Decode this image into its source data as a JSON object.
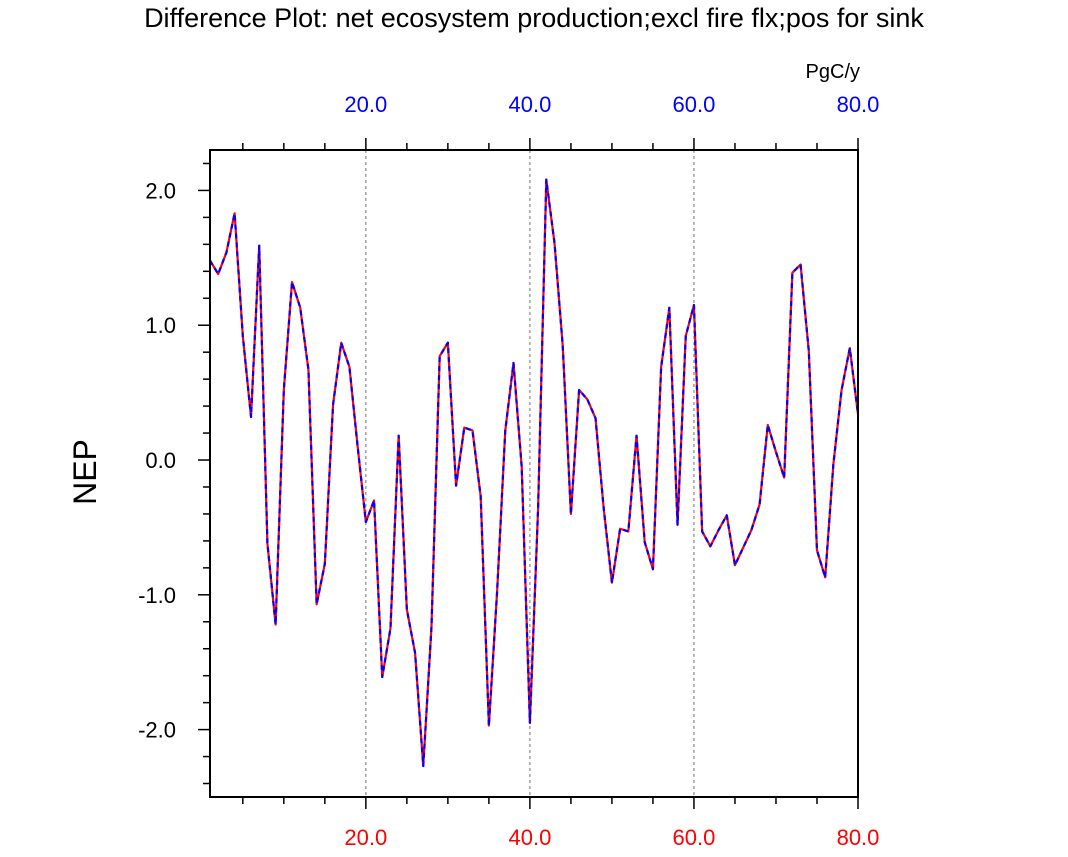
{
  "chart_data": {
    "type": "line",
    "title": "Difference Plot: net ecosystem production;excl fire flx;pos for sink",
    "units": "PgC/y",
    "xlabel": "",
    "ylabel": "NEP",
    "xlim": [
      1,
      80
    ],
    "ylim": [
      -2.5,
      2.3
    ],
    "x_ticks_bottom": [
      "20.0",
      "40.0",
      "60.0",
      "80.0"
    ],
    "x_ticks_top": [
      "20.0",
      "40.0",
      "60.0",
      "80.0"
    ],
    "x_tick_values": [
      20,
      40,
      60,
      80
    ],
    "y_ticks": [
      "2.0",
      "1.0",
      "0.0",
      "-1.0",
      "-2.0"
    ],
    "y_tick_values": [
      2,
      1,
      0,
      -1,
      -2
    ],
    "x_minor_step": 5,
    "y_minor_step": 0.2,
    "grid": "vertical dashed at major x ticks",
    "colors": {
      "bottom_axis_labels": "#ff0000",
      "top_axis_labels": "#0000ff",
      "series_a": "#ff0000",
      "series_b": "#0000ff",
      "grid": "#888888",
      "axes": "#000000"
    },
    "x": [
      1,
      2,
      3,
      4,
      5,
      6,
      7,
      8,
      9,
      10,
      11,
      12,
      13,
      14,
      15,
      16,
      17,
      18,
      19,
      20,
      21,
      22,
      23,
      24,
      25,
      26,
      27,
      28,
      29,
      30,
      31,
      32,
      33,
      34,
      35,
      36,
      37,
      38,
      39,
      40,
      41,
      42,
      43,
      44,
      45,
      46,
      47,
      48,
      49,
      50,
      51,
      52,
      53,
      54,
      55,
      56,
      57,
      58,
      59,
      60,
      61,
      62,
      63,
      64,
      65,
      66,
      67,
      68,
      69,
      70,
      71,
      72,
      73,
      74,
      75,
      76,
      77,
      78,
      79,
      80
    ],
    "series": [
      {
        "values": [
          1.48,
          1.38,
          1.54,
          1.83,
          0.92,
          0.32,
          1.59,
          -0.62,
          -1.22,
          0.52,
          1.32,
          1.13,
          0.67,
          -1.07,
          -0.77,
          0.41,
          0.87,
          0.69,
          0.1,
          -0.46,
          -0.3,
          -1.61,
          -1.25,
          0.18,
          -1.11,
          -1.43,
          -2.27,
          -1.24,
          0.77,
          0.87,
          -0.19,
          0.24,
          0.22,
          -0.27,
          -1.97,
          -0.98,
          0.22,
          0.72,
          -0.05,
          -1.95,
          -0.36,
          2.08,
          1.61,
          0.85,
          -0.4,
          0.52,
          0.45,
          0.31,
          -0.36,
          -0.91,
          -0.51,
          -0.53,
          0.18,
          -0.61,
          -0.81,
          0.69,
          1.13,
          -0.48,
          0.92,
          1.15,
          -0.53,
          -0.64,
          -0.52,
          -0.41,
          -0.78,
          -0.65,
          -0.52,
          -0.33,
          0.26,
          0.06,
          -0.13,
          1.39,
          1.45,
          0.81,
          -0.67,
          -0.87,
          -0.03,
          0.52,
          0.83,
          0.34
        ]
      }
    ]
  }
}
